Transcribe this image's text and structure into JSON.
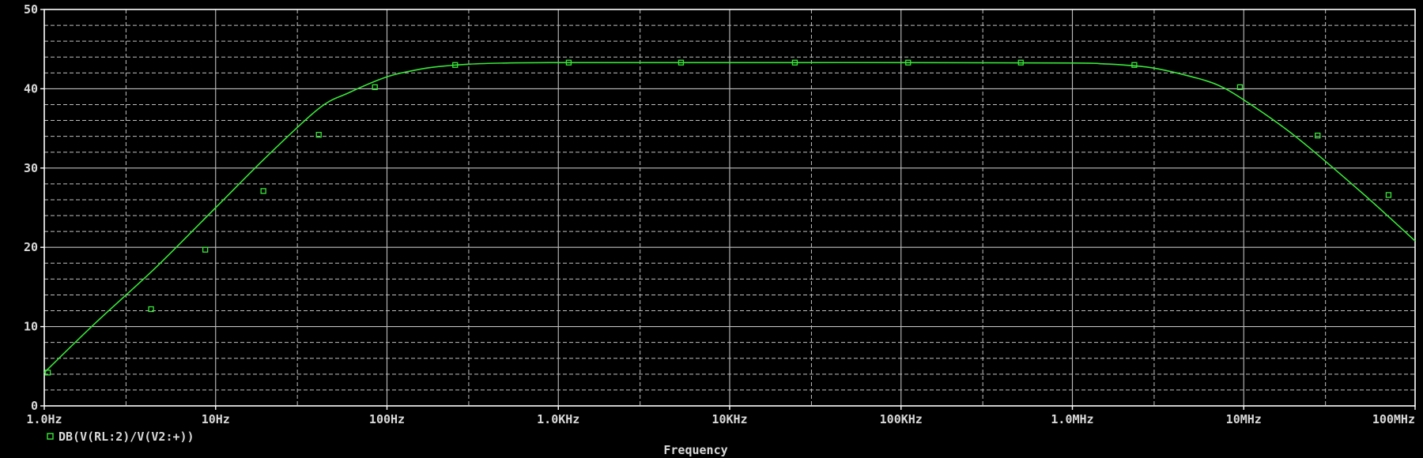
{
  "chart_data": {
    "type": "line",
    "title": "",
    "xlabel": "Frequency",
    "ylabel": "",
    "x_scale": "log",
    "xlim": [
      1,
      100000000
    ],
    "ylim": [
      0,
      50
    ],
    "grid": true,
    "legend_position": "bottom-left",
    "x_tick_labels": [
      "1.0Hz",
      "10Hz",
      "100Hz",
      "1.0KHz",
      "10KHz",
      "100KHz",
      "1.0MHz",
      "10MHz",
      "100MHz"
    ],
    "y_tick_labels": [
      "0",
      "10",
      "20",
      "30",
      "40",
      "50"
    ],
    "y_ticks": [
      0,
      10,
      20,
      30,
      40,
      50
    ],
    "series": [
      {
        "name": "DB(V(RL:2)/V(V2:+))",
        "color": "#39e639",
        "marker": "hollow-square",
        "x": [
          1.0,
          2.0,
          4.5,
          10,
          20,
          40,
          60,
          100,
          150,
          200,
          300,
          500,
          1000,
          3000,
          10000,
          100000,
          1000000,
          1500000,
          2000000,
          3000000,
          5000000,
          7000000,
          10000000,
          20000000,
          50000000,
          100000000
        ],
        "y": [
          4.2,
          10.5,
          17.5,
          25.0,
          31.5,
          37.5,
          39.5,
          41.5,
          42.4,
          42.8,
          43.1,
          43.25,
          43.3,
          43.3,
          43.3,
          43.3,
          43.25,
          43.15,
          43.0,
          42.6,
          41.5,
          40.5,
          38.6,
          34.0,
          26.7,
          20.8
        ]
      }
    ],
    "markers": [
      {
        "x": 1.05,
        "y": 4.2
      },
      {
        "x": 4.2,
        "y": 12.2
      },
      {
        "x": 8.7,
        "y": 19.7
      },
      {
        "x": 19.0,
        "y": 27.1
      },
      {
        "x": 40.0,
        "y": 34.2
      },
      {
        "x": 85.0,
        "y": 40.2
      },
      {
        "x": 250.0,
        "y": 43.0
      },
      {
        "x": 1150.0,
        "y": 43.3
      },
      {
        "x": 5200.0,
        "y": 43.3
      },
      {
        "x": 24000.0,
        "y": 43.3
      },
      {
        "x": 110000.0,
        "y": 43.3
      },
      {
        "x": 500000.0,
        "y": 43.3
      },
      {
        "x": 2300000.0,
        "y": 43.0
      },
      {
        "x": 9500000.0,
        "y": 40.2
      },
      {
        "x": 27000000.0,
        "y": 34.1
      },
      {
        "x": 70000000.0,
        "y": 26.6
      }
    ]
  }
}
